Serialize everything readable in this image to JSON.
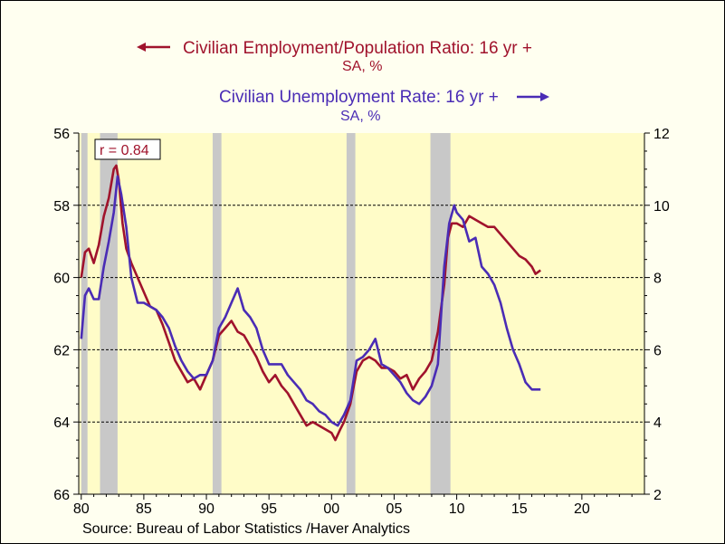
{
  "source": "Source:  Bureau of Labor Statistics /Haver Analytics",
  "annotation": "r = 0.84",
  "colors": {
    "employment": "#a0132c",
    "unemployment": "#4a2cb5",
    "plot_bg": "#fffcc8",
    "recession": "#c8c8c8",
    "outer_bg": "#fffff0"
  },
  "chart_data": {
    "type": "line",
    "xlim": [
      1979.8,
      2025
    ],
    "x_ticks": [
      1980,
      1985,
      1990,
      1995,
      2000,
      2005,
      2010,
      2015,
      2020
    ],
    "x_tick_labels": [
      "80",
      "85",
      "90",
      "95",
      "00",
      "05",
      "10",
      "15",
      "20"
    ],
    "left_axis": {
      "ylim": [
        66,
        56
      ],
      "inverted": true,
      "ticks": [
        56,
        58,
        60,
        62,
        64,
        66
      ],
      "tick_labels": [
        "56",
        "58",
        "60",
        "62",
        "64",
        "66"
      ]
    },
    "right_axis": {
      "ylim": [
        2,
        12
      ],
      "ticks": [
        2,
        4,
        6,
        8,
        10,
        12
      ],
      "tick_labels": [
        "2",
        "4",
        "6",
        "8",
        "10",
        "12"
      ]
    },
    "gridlines_y_right": [
      4,
      6,
      8,
      10
    ],
    "recessions": [
      [
        1980.0,
        1980.5
      ],
      [
        1981.5,
        1982.9
      ],
      [
        1990.5,
        1991.2
      ],
      [
        2001.2,
        2001.9
      ],
      [
        2007.9,
        2009.5
      ]
    ],
    "series": [
      {
        "name": "Civilian Employment/Population Ratio: 16 yr +",
        "unit": "SA, %",
        "axis": "left",
        "arrow": "left",
        "x": [
          1980.0,
          1980.3,
          1980.6,
          1981.0,
          1981.4,
          1981.8,
          1982.2,
          1982.6,
          1982.8,
          1983.0,
          1983.3,
          1983.6,
          1984.0,
          1984.5,
          1985.0,
          1985.5,
          1986.0,
          1986.5,
          1987.0,
          1987.5,
          1988.0,
          1988.5,
          1989.0,
          1989.5,
          1990.0,
          1990.5,
          1991.0,
          1991.5,
          1992.0,
          1992.5,
          1993.0,
          1993.5,
          1994.0,
          1994.5,
          1995.0,
          1995.5,
          1996.0,
          1996.5,
          1997.0,
          1997.5,
          1998.0,
          1998.5,
          1999.0,
          1999.5,
          2000.0,
          2000.3,
          2000.7,
          2001.0,
          2001.5,
          2002.0,
          2002.5,
          2003.0,
          2003.5,
          2004.0,
          2004.5,
          2005.0,
          2005.5,
          2006.0,
          2006.5,
          2007.0,
          2007.5,
          2008.0,
          2008.5,
          2009.0,
          2009.3,
          2009.6,
          2010.0,
          2010.5,
          2011.0,
          2011.5,
          2012.0,
          2012.5,
          2013.0,
          2013.5,
          2014.0,
          2014.5,
          2015.0,
          2015.5,
          2016.0,
          2016.3,
          2016.7
        ],
        "values": [
          60.0,
          59.3,
          59.2,
          59.6,
          59.1,
          58.3,
          57.8,
          57.0,
          56.9,
          57.3,
          58.5,
          59.2,
          59.6,
          60.0,
          60.4,
          60.8,
          60.9,
          61.3,
          61.8,
          62.3,
          62.6,
          62.9,
          62.8,
          63.1,
          62.7,
          62.3,
          61.6,
          61.4,
          61.2,
          61.5,
          61.6,
          61.9,
          62.2,
          62.6,
          62.9,
          62.7,
          63.0,
          63.2,
          63.5,
          63.8,
          64.1,
          64.0,
          64.1,
          64.2,
          64.3,
          64.5,
          64.2,
          64.0,
          63.5,
          62.6,
          62.3,
          62.2,
          62.3,
          62.5,
          62.5,
          62.6,
          62.8,
          62.7,
          63.1,
          62.8,
          62.6,
          62.3,
          61.5,
          60.2,
          58.9,
          58.5,
          58.5,
          58.6,
          58.3,
          58.4,
          58.5,
          58.6,
          58.6,
          58.8,
          59.0,
          59.2,
          59.4,
          59.5,
          59.7,
          59.9,
          59.8
        ]
      },
      {
        "name": "Civilian Unemployment Rate: 16 yr +",
        "unit": "SA, %",
        "axis": "right",
        "arrow": "right",
        "x": [
          1980.0,
          1980.3,
          1980.6,
          1981.0,
          1981.4,
          1981.8,
          1982.2,
          1982.6,
          1982.9,
          1983.2,
          1983.6,
          1984.0,
          1984.5,
          1985.0,
          1985.5,
          1986.0,
          1986.5,
          1987.0,
          1987.5,
          1988.0,
          1988.5,
          1989.0,
          1989.5,
          1990.0,
          1990.5,
          1991.0,
          1991.5,
          1992.0,
          1992.5,
          1993.0,
          1993.5,
          1994.0,
          1994.5,
          1995.0,
          1995.5,
          1996.0,
          1996.5,
          1997.0,
          1997.5,
          1998.0,
          1998.5,
          1999.0,
          1999.5,
          2000.0,
          2000.5,
          2001.0,
          2001.5,
          2002.0,
          2002.5,
          2003.0,
          2003.5,
          2004.0,
          2004.5,
          2005.0,
          2005.5,
          2006.0,
          2006.5,
          2007.0,
          2007.5,
          2008.0,
          2008.5,
          2009.0,
          2009.4,
          2009.8,
          2010.0,
          2010.5,
          2011.0,
          2011.5,
          2012.0,
          2012.5,
          2013.0,
          2013.5,
          2014.0,
          2014.5,
          2015.0,
          2015.5,
          2016.0,
          2016.3,
          2016.7
        ],
        "values": [
          6.3,
          7.5,
          7.7,
          7.4,
          7.4,
          8.3,
          9.0,
          9.8,
          10.8,
          10.3,
          9.4,
          8.0,
          7.3,
          7.3,
          7.2,
          7.1,
          6.9,
          6.6,
          6.1,
          5.7,
          5.4,
          5.2,
          5.3,
          5.3,
          5.7,
          6.6,
          6.9,
          7.3,
          7.7,
          7.1,
          6.9,
          6.6,
          6.0,
          5.6,
          5.6,
          5.6,
          5.3,
          5.1,
          4.9,
          4.6,
          4.5,
          4.3,
          4.2,
          4.0,
          3.9,
          4.2,
          4.6,
          5.7,
          5.8,
          6.0,
          6.3,
          5.6,
          5.5,
          5.3,
          5.1,
          4.8,
          4.6,
          4.5,
          4.7,
          5.0,
          5.6,
          8.3,
          9.5,
          10.0,
          9.8,
          9.6,
          9.0,
          9.1,
          8.3,
          8.1,
          7.8,
          7.3,
          6.6,
          6.0,
          5.6,
          5.1,
          4.9,
          4.9,
          4.9
        ]
      }
    ]
  }
}
